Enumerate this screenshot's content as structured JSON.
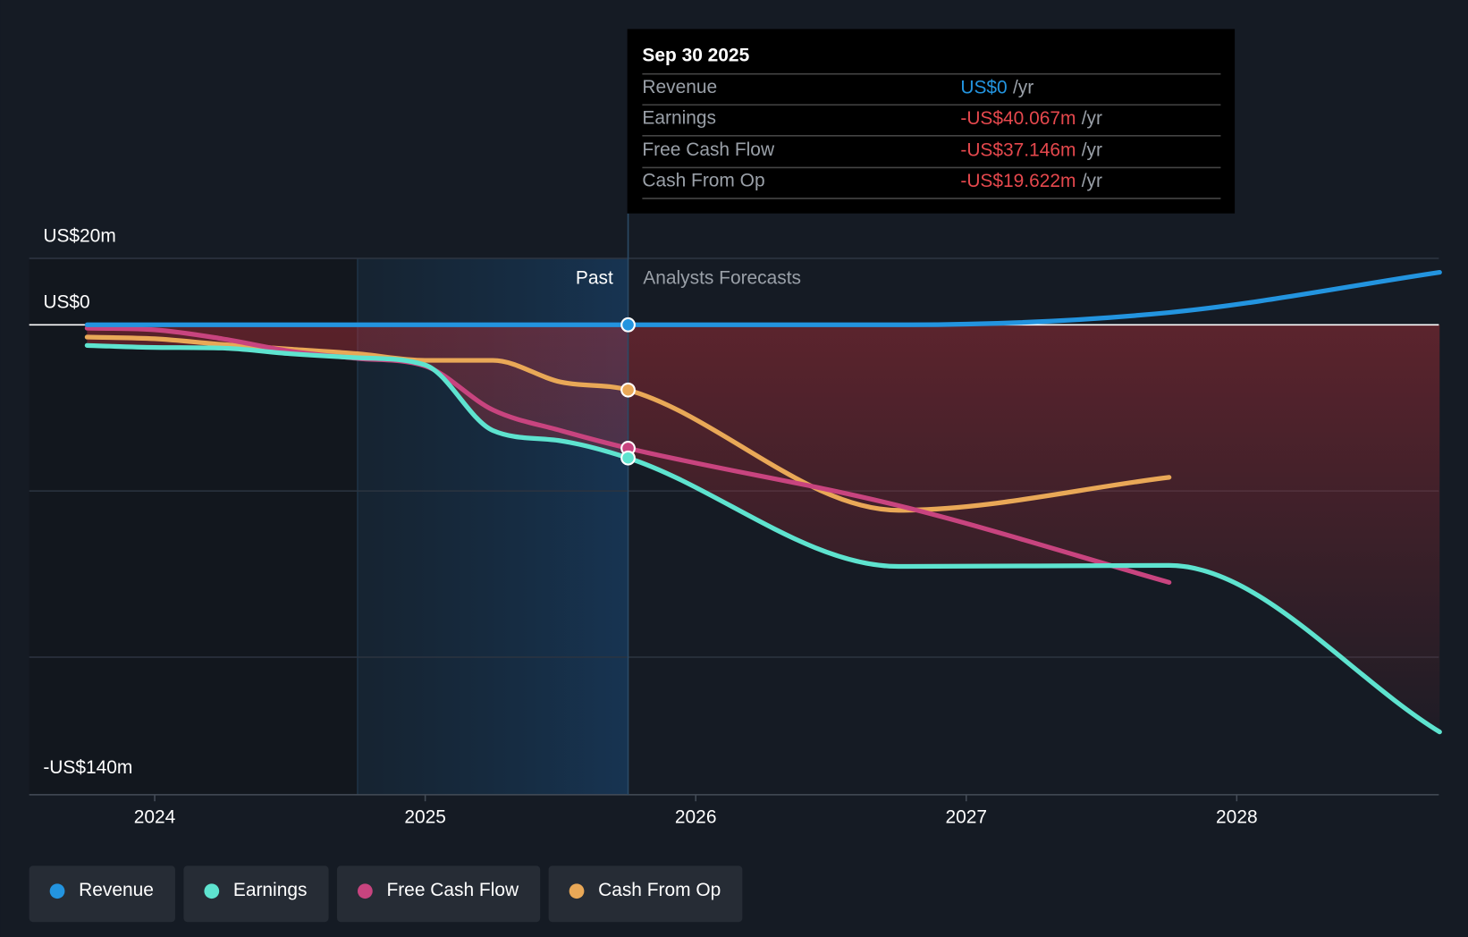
{
  "chart_data": {
    "type": "line",
    "xlim": [
      2023.536,
      2028.747
    ],
    "xticks": [
      2024,
      2025,
      2026,
      2027,
      2028
    ],
    "ylim": [
      -141.4,
      20
    ],
    "yticks": [
      {
        "value": 20,
        "label": "US$20m"
      },
      {
        "value": 0,
        "label": "US$0"
      },
      {
        "value": -140,
        "label": "-US$140m"
      }
    ],
    "grid_values": [
      20,
      -50,
      -100
    ],
    "past_start": 2024.75,
    "past_end": 2025.75,
    "past_label": "Past",
    "forecast_label": "Analysts Forecasts",
    "series": [
      {
        "name": "Revenue",
        "color": "#2394df",
        "x": [
          2023.75,
          2024,
          2024.25,
          2024.5,
          2024.75,
          2025,
          2025.25,
          2025.5,
          2025.75,
          2026.75,
          2027.75,
          2028.75
        ],
        "values": [
          0,
          0,
          0,
          0,
          0,
          0,
          0,
          0,
          0,
          0,
          3.7,
          15.8
        ]
      },
      {
        "name": "Earnings",
        "color": "#5ee3cf",
        "x": [
          2023.75,
          2024,
          2024.25,
          2024.5,
          2024.75,
          2025,
          2025.25,
          2025.5,
          2025.75,
          2026.75,
          2027.75,
          2028.75
        ],
        "values": [
          -6.2,
          -6.8,
          -7,
          -8.7,
          -9.9,
          -12.1,
          -31.8,
          -34.9,
          -40.067,
          -72.7,
          -72.4,
          -122.5
        ]
      },
      {
        "name": "Free Cash Flow",
        "color": "#c8447f",
        "x": [
          2023.75,
          2024,
          2024.25,
          2024.5,
          2024.75,
          2025,
          2025.25,
          2025.5,
          2025.75,
          2026.75,
          2027.75
        ],
        "values": [
          -1,
          -1.5,
          -4.2,
          -7.9,
          -10.1,
          -12.4,
          -25.6,
          -31.8,
          -37.146,
          -54.4,
          -77.5
        ]
      },
      {
        "name": "Cash From Op",
        "color": "#e9a857",
        "x": [
          2023.75,
          2024,
          2024.25,
          2024.5,
          2024.75,
          2025,
          2025.25,
          2025.5,
          2025.75,
          2026.75,
          2027.75
        ],
        "values": [
          -3.7,
          -4.2,
          -5.9,
          -7.3,
          -8.7,
          -10.7,
          -10.7,
          -17.2,
          -19.622,
          -55.8,
          -45.9
        ]
      }
    ],
    "tooltip": {
      "title": "Sep 30 2025",
      "rows": [
        {
          "label": "Revenue",
          "value": "US$0",
          "unit": "/yr",
          "color": "#2394df"
        },
        {
          "label": "Earnings",
          "value": "-US$40.067m",
          "unit": "/yr",
          "color": "#e5484d"
        },
        {
          "label": "Free Cash Flow",
          "value": "-US$37.146m",
          "unit": "/yr",
          "color": "#e5484d"
        },
        {
          "label": "Cash From Op",
          "value": "-US$19.622m",
          "unit": "/yr",
          "color": "#e5484d"
        }
      ]
    }
  }
}
